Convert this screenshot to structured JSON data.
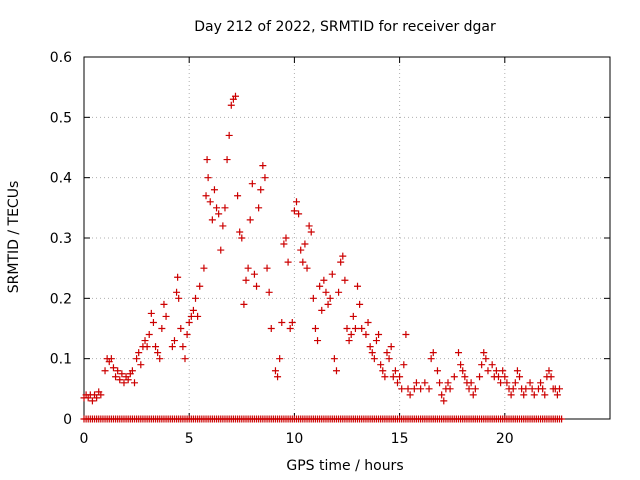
{
  "chart_data": {
    "type": "scatter",
    "title": "Day 212 of 2022, SRMTID for receiver dgar",
    "xlabel": "GPS time / hours",
    "ylabel": "SRMTID / TECUs",
    "xlim": [
      0,
      25
    ],
    "ylim": [
      0,
      0.6
    ],
    "x_ticks": [
      0,
      5,
      10,
      15,
      20
    ],
    "y_ticks": [
      0,
      0.1,
      0.2,
      0.3,
      0.4,
      0.5,
      0.6
    ],
    "x_tick_labels": [
      "0",
      "5",
      "10",
      "15",
      "20"
    ],
    "y_tick_labels": [
      "0",
      "0.1",
      "0.2",
      "0.3",
      "0.4",
      "0.5",
      "0.6"
    ],
    "grid": true,
    "marker": "+",
    "series": [
      {
        "name": "SRMTID",
        "color": "#cc0000",
        "points": [
          [
            0.0,
            0.035
          ],
          [
            0.1,
            0.04
          ],
          [
            0.2,
            0.035
          ],
          [
            0.3,
            0.04
          ],
          [
            0.4,
            0.03
          ],
          [
            0.5,
            0.04
          ],
          [
            0.6,
            0.035
          ],
          [
            0.7,
            0.045
          ],
          [
            0.8,
            0.04
          ],
          [
            1.0,
            0.08
          ],
          [
            1.1,
            0.1
          ],
          [
            1.2,
            0.095
          ],
          [
            1.3,
            0.1
          ],
          [
            1.4,
            0.085
          ],
          [
            1.5,
            0.07
          ],
          [
            1.6,
            0.08
          ],
          [
            1.7,
            0.065
          ],
          [
            1.8,
            0.075
          ],
          [
            1.9,
            0.06
          ],
          [
            2.0,
            0.07
          ],
          [
            2.1,
            0.065
          ],
          [
            2.2,
            0.075
          ],
          [
            2.3,
            0.08
          ],
          [
            2.4,
            0.06
          ],
          [
            2.5,
            0.1
          ],
          [
            2.6,
            0.11
          ],
          [
            2.7,
            0.09
          ],
          [
            2.8,
            0.12
          ],
          [
            2.9,
            0.13
          ],
          [
            3.0,
            0.12
          ],
          [
            3.1,
            0.14
          ],
          [
            3.2,
            0.175
          ],
          [
            3.3,
            0.16
          ],
          [
            3.4,
            0.12
          ],
          [
            3.5,
            0.11
          ],
          [
            3.6,
            0.1
          ],
          [
            3.7,
            0.15
          ],
          [
            3.8,
            0.19
          ],
          [
            3.9,
            0.17
          ],
          [
            4.2,
            0.12
          ],
          [
            4.3,
            0.13
          ],
          [
            4.4,
            0.21
          ],
          [
            4.45,
            0.235
          ],
          [
            4.5,
            0.2
          ],
          [
            4.6,
            0.15
          ],
          [
            4.7,
            0.12
          ],
          [
            4.8,
            0.1
          ],
          [
            4.9,
            0.14
          ],
          [
            5.0,
            0.16
          ],
          [
            5.1,
            0.17
          ],
          [
            5.2,
            0.18
          ],
          [
            5.3,
            0.2
          ],
          [
            5.4,
            0.17
          ],
          [
            5.5,
            0.22
          ],
          [
            5.7,
            0.25
          ],
          [
            5.8,
            0.37
          ],
          [
            5.85,
            0.43
          ],
          [
            5.9,
            0.4
          ],
          [
            6.0,
            0.36
          ],
          [
            6.1,
            0.33
          ],
          [
            6.2,
            0.38
          ],
          [
            6.3,
            0.35
          ],
          [
            6.4,
            0.34
          ],
          [
            6.5,
            0.28
          ],
          [
            6.6,
            0.32
          ],
          [
            6.7,
            0.35
          ],
          [
            6.8,
            0.43
          ],
          [
            6.9,
            0.47
          ],
          [
            7.0,
            0.52
          ],
          [
            7.1,
            0.53
          ],
          [
            7.2,
            0.535
          ],
          [
            7.3,
            0.37
          ],
          [
            7.4,
            0.31
          ],
          [
            7.5,
            0.3
          ],
          [
            7.6,
            0.19
          ],
          [
            7.7,
            0.23
          ],
          [
            7.8,
            0.25
          ],
          [
            7.9,
            0.33
          ],
          [
            8.0,
            0.39
          ],
          [
            8.1,
            0.24
          ],
          [
            8.2,
            0.22
          ],
          [
            8.3,
            0.35
          ],
          [
            8.4,
            0.38
          ],
          [
            8.5,
            0.42
          ],
          [
            8.6,
            0.4
          ],
          [
            8.7,
            0.25
          ],
          [
            8.8,
            0.21
          ],
          [
            8.9,
            0.15
          ],
          [
            9.1,
            0.08
          ],
          [
            9.2,
            0.07
          ],
          [
            9.3,
            0.1
          ],
          [
            9.4,
            0.16
          ],
          [
            9.5,
            0.29
          ],
          [
            9.6,
            0.3
          ],
          [
            9.7,
            0.26
          ],
          [
            9.8,
            0.15
          ],
          [
            9.9,
            0.16
          ],
          [
            10.0,
            0.345
          ],
          [
            10.1,
            0.36
          ],
          [
            10.2,
            0.34
          ],
          [
            10.3,
            0.28
          ],
          [
            10.4,
            0.26
          ],
          [
            10.5,
            0.29
          ],
          [
            10.6,
            0.25
          ],
          [
            10.7,
            0.32
          ],
          [
            10.8,
            0.31
          ],
          [
            10.9,
            0.2
          ],
          [
            11.0,
            0.15
          ],
          [
            11.1,
            0.13
          ],
          [
            11.2,
            0.22
          ],
          [
            11.3,
            0.18
          ],
          [
            11.4,
            0.23
          ],
          [
            11.5,
            0.21
          ],
          [
            11.6,
            0.19
          ],
          [
            11.7,
            0.2
          ],
          [
            11.8,
            0.24
          ],
          [
            11.9,
            0.1
          ],
          [
            12.0,
            0.08
          ],
          [
            12.1,
            0.21
          ],
          [
            12.2,
            0.26
          ],
          [
            12.3,
            0.27
          ],
          [
            12.4,
            0.23
          ],
          [
            12.5,
            0.15
          ],
          [
            12.6,
            0.13
          ],
          [
            12.7,
            0.14
          ],
          [
            12.8,
            0.17
          ],
          [
            12.9,
            0.15
          ],
          [
            13.0,
            0.22
          ],
          [
            13.1,
            0.19
          ],
          [
            13.2,
            0.15
          ],
          [
            13.4,
            0.14
          ],
          [
            13.5,
            0.16
          ],
          [
            13.6,
            0.12
          ],
          [
            13.7,
            0.11
          ],
          [
            13.8,
            0.1
          ],
          [
            13.9,
            0.13
          ],
          [
            14.0,
            0.14
          ],
          [
            14.1,
            0.09
          ],
          [
            14.2,
            0.08
          ],
          [
            14.3,
            0.07
          ],
          [
            14.4,
            0.11
          ],
          [
            14.5,
            0.1
          ],
          [
            14.6,
            0.12
          ],
          [
            14.7,
            0.07
          ],
          [
            14.8,
            0.08
          ],
          [
            14.9,
            0.06
          ],
          [
            15.0,
            0.07
          ],
          [
            15.1,
            0.05
          ],
          [
            15.2,
            0.09
          ],
          [
            15.3,
            0.14
          ],
          [
            15.4,
            0.05
          ],
          [
            15.5,
            0.04
          ],
          [
            15.7,
            0.05
          ],
          [
            15.8,
            0.06
          ],
          [
            16.0,
            0.05
          ],
          [
            16.2,
            0.06
          ],
          [
            16.4,
            0.05
          ],
          [
            16.5,
            0.1
          ],
          [
            16.6,
            0.11
          ],
          [
            16.8,
            0.08
          ],
          [
            16.9,
            0.06
          ],
          [
            17.0,
            0.04
          ],
          [
            17.1,
            0.03
          ],
          [
            17.2,
            0.05
          ],
          [
            17.3,
            0.06
          ],
          [
            17.4,
            0.05
          ],
          [
            17.6,
            0.07
          ],
          [
            17.8,
            0.11
          ],
          [
            17.9,
            0.09
          ],
          [
            18.0,
            0.08
          ],
          [
            18.1,
            0.07
          ],
          [
            18.2,
            0.06
          ],
          [
            18.3,
            0.05
          ],
          [
            18.4,
            0.06
          ],
          [
            18.5,
            0.04
          ],
          [
            18.6,
            0.05
          ],
          [
            18.8,
            0.07
          ],
          [
            18.9,
            0.09
          ],
          [
            19.0,
            0.11
          ],
          [
            19.1,
            0.1
          ],
          [
            19.2,
            0.08
          ],
          [
            19.4,
            0.09
          ],
          [
            19.5,
            0.07
          ],
          [
            19.6,
            0.08
          ],
          [
            19.7,
            0.07
          ],
          [
            19.8,
            0.06
          ],
          [
            19.9,
            0.08
          ],
          [
            20.0,
            0.07
          ],
          [
            20.1,
            0.06
          ],
          [
            20.2,
            0.05
          ],
          [
            20.3,
            0.04
          ],
          [
            20.4,
            0.05
          ],
          [
            20.5,
            0.06
          ],
          [
            20.6,
            0.08
          ],
          [
            20.7,
            0.07
          ],
          [
            20.8,
            0.05
          ],
          [
            20.9,
            0.04
          ],
          [
            21.0,
            0.05
          ],
          [
            21.2,
            0.06
          ],
          [
            21.3,
            0.05
          ],
          [
            21.4,
            0.04
          ],
          [
            21.6,
            0.05
          ],
          [
            21.7,
            0.06
          ],
          [
            21.8,
            0.05
          ],
          [
            21.9,
            0.04
          ],
          [
            22.0,
            0.07
          ],
          [
            22.1,
            0.08
          ],
          [
            22.2,
            0.07
          ],
          [
            22.3,
            0.05
          ],
          [
            22.4,
            0.05
          ],
          [
            22.5,
            0.04
          ],
          [
            22.6,
            0.05
          ]
        ],
        "baseline_zero": {
          "x_start": 0.0,
          "x_end": 22.7,
          "x_step": 0.1,
          "y": 0
        }
      }
    ]
  }
}
